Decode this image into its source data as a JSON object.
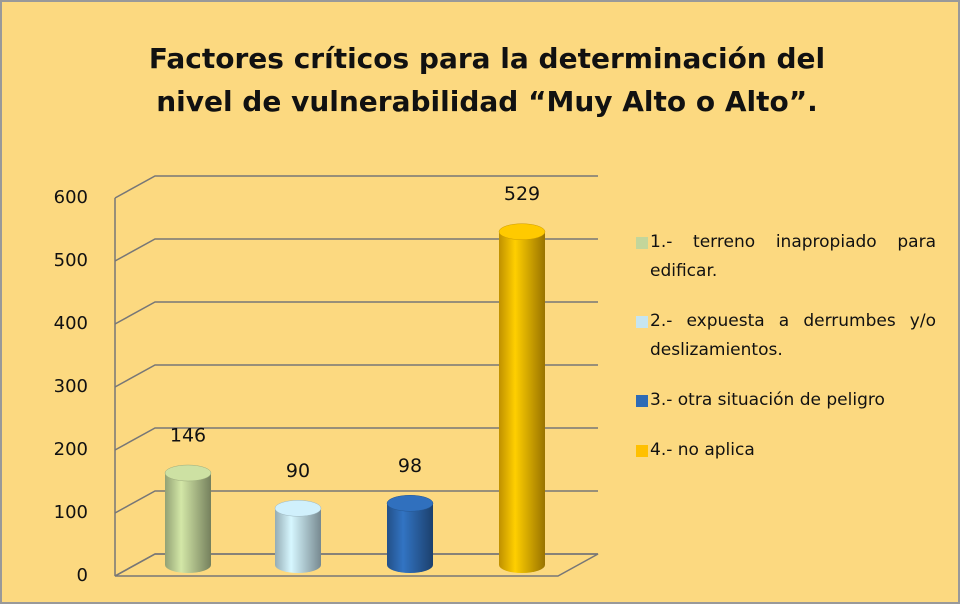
{
  "chart_data": {
    "type": "bar3d",
    "title": [
      "Factores críticos para la determinación del",
      "nivel de vulnerabilidad “Muy Alto o Alto”."
    ],
    "categories": [
      "1.-  terreno inapropiado para edificar.",
      "2.- expuesta a derrumbes y/o deslizamientos.",
      "3.- otra situación de peligro",
      "4.- no aplica"
    ],
    "values": [
      146,
      90,
      98,
      529
    ],
    "colors": [
      "#c3d69b",
      "#c6e5f0",
      "#2e6bb5",
      "#ffc000"
    ],
    "ylim": [
      0,
      600
    ],
    "yticks": [
      0,
      100,
      200,
      300,
      400,
      500,
      600
    ],
    "grid": true,
    "legend": "right"
  }
}
